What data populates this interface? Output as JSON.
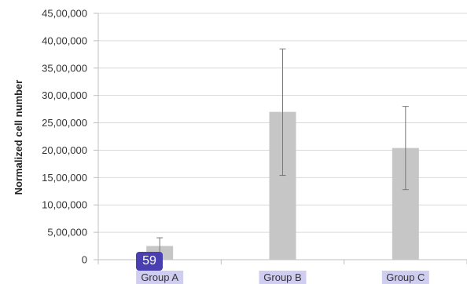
{
  "chart_data": {
    "type": "bar",
    "categories": [
      "Group A",
      "Group B",
      "Group C"
    ],
    "values": [
      250000,
      2700000,
      2040000
    ],
    "error_low": [
      0,
      1540000,
      1280000
    ],
    "error_high": [
      400000,
      3850000,
      2800000
    ],
    "title": "",
    "xlabel": "",
    "ylabel": "Normalized cell number",
    "ylim": [
      0,
      4500000
    ],
    "yticks": [
      0,
      500000,
      1000000,
      1500000,
      2000000,
      2500000,
      3000000,
      3500000,
      4000000,
      4500000
    ],
    "ytick_labels": [
      "0",
      "5,00,000",
      "10,00,000",
      "15,00,000",
      "20,00,000",
      "25,00,000",
      "30,00,000",
      "35,00,000",
      "40,00,000",
      "45,00,000"
    ],
    "grid": true,
    "colors": {
      "bar": "#c6c6c6",
      "grid": "#d9d9d9",
      "axis": "#bfbfbf",
      "error": "#777777",
      "category_highlight": "#cfcdf0"
    }
  },
  "badge": {
    "label": "59",
    "color": "#4a3fb0"
  }
}
